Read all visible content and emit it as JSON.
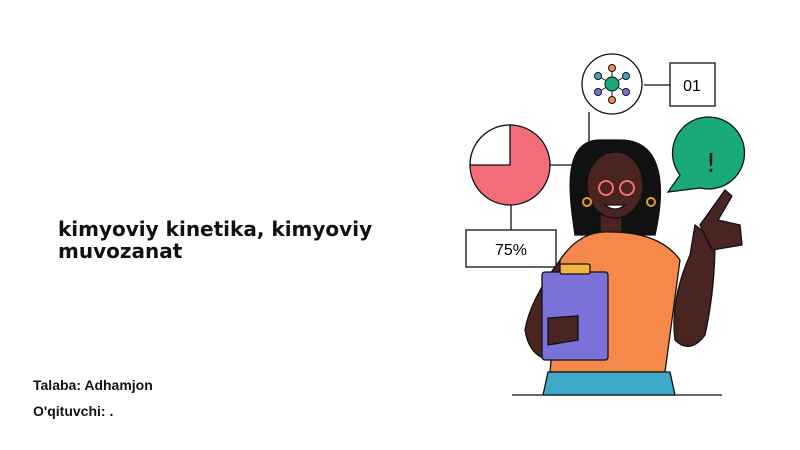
{
  "slide": {
    "title": "kimyoviy kinetika, kimyoviy muvozanat",
    "student": "Talaba: Adhamjon",
    "teacher": "O'qituvchi: ."
  },
  "illustration": {
    "percent_label": "75%",
    "number_label": "01",
    "alert_symbol": "!",
    "colors": {
      "pie": "#f26d78",
      "bubble": "#1aaa7a",
      "shirt": "#f5884a",
      "clipboard": "#7a72d8",
      "pants": "#3ea8c8",
      "skin": "#4a2420"
    }
  }
}
